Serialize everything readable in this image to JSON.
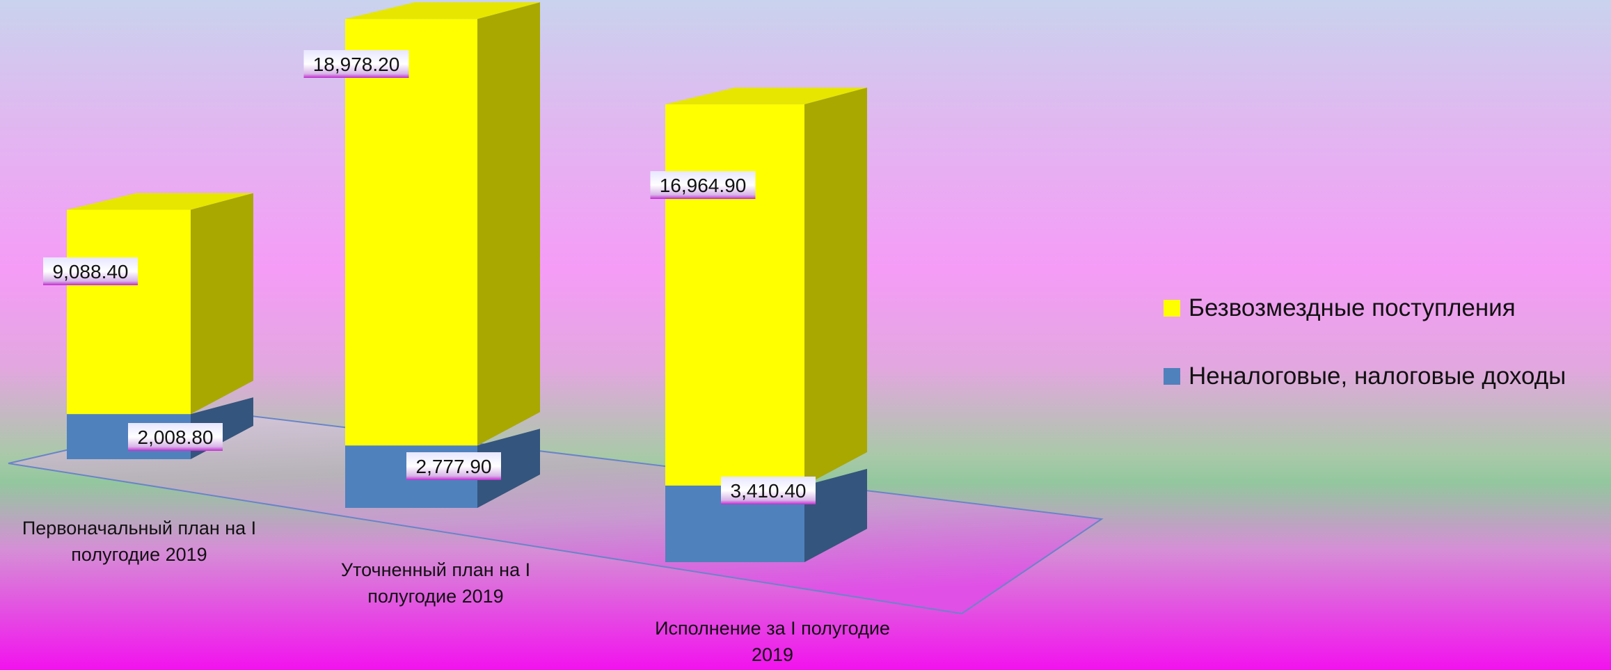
{
  "chart_data": {
    "type": "bar",
    "stacked": true,
    "three_d": true,
    "categories": [
      [
        "Первоначальный план на I",
        "полугодие 2019"
      ],
      [
        "Уточненный план на  I",
        "полугодие 2019"
      ],
      [
        "Исполнение за  I полугодие",
        "2019"
      ]
    ],
    "series": [
      {
        "name": "Неналоговые, налоговые доходы",
        "values": [
          2008.8,
          2777.9,
          3410.4
        ],
        "labels": [
          "2,008.80",
          "2,777.90",
          "3,410.40"
        ],
        "color": "#4f81bd"
      },
      {
        "name": "Безвозмездные поступления",
        "values": [
          9088.4,
          18978.2,
          16964.9
        ],
        "labels": [
          "9,088.40",
          "18,978.20",
          "16,964.90"
        ],
        "color": "#ffff00"
      }
    ],
    "legend": "right",
    "grid": false,
    "ylim": [
      0,
      23000
    ]
  }
}
